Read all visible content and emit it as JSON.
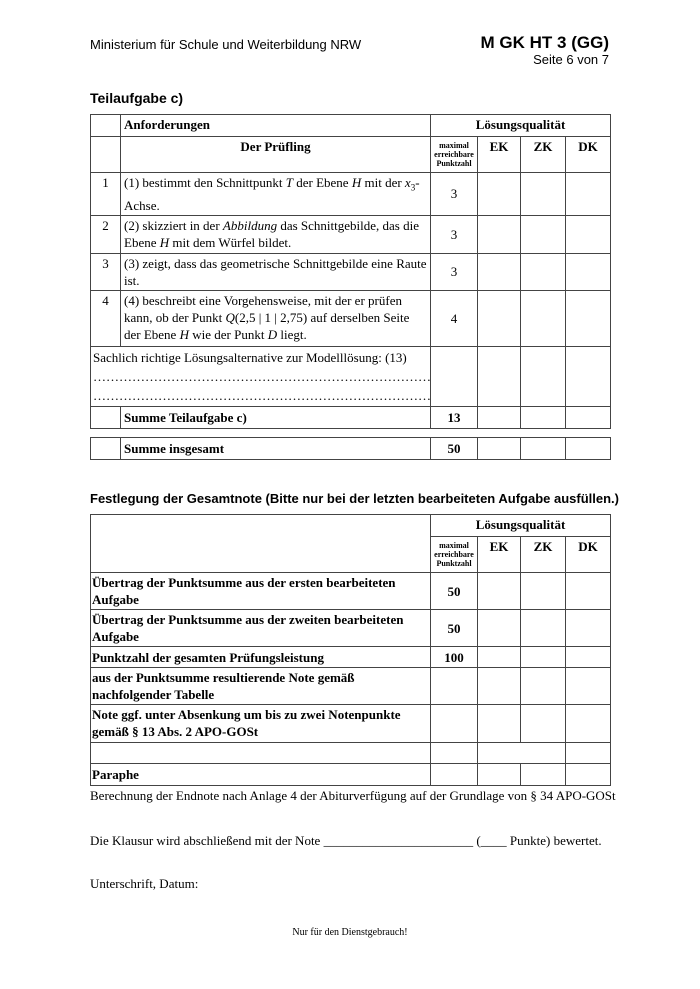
{
  "header": {
    "ministry": "Ministerium für Schule und Weiterbildung NRW",
    "code": "M GK HT 3 (GG)",
    "page": "Seite 6 von 7"
  },
  "section_title": "Teilaufgabe c)",
  "table1": {
    "h_anf": "Anforderungen",
    "h_lq": "Lösungsqualität",
    "h_pruef": "Der Prüfling",
    "h_max": "maximal erreichbare Punktzahl",
    "h_ek": "EK",
    "h_zk": "ZK",
    "h_dk": "DK",
    "rows": [
      {
        "n": "1",
        "pts": "3"
      },
      {
        "n": "2",
        "pts": "3"
      },
      {
        "n": "3",
        "pts": "3"
      },
      {
        "n": "4",
        "pts": "4"
      }
    ],
    "r1a": "(1) bestimmt den Schnittpunkt ",
    "r1T": "T",
    "r1b": " der Ebene ",
    "r1H": "H",
    "r1c": " mit der ",
    "r1x": "x",
    "r1sub": "3",
    "r1d": "-Achse.",
    "r2a": "(2) skizziert in der ",
    "r2i": "Abbildung",
    "r2b": " das Schnittgebilde, das die Ebene ",
    "r2H": "H",
    "r2c": " mit dem Würfel bildet.",
    "r3": "(3) zeigt, dass das geometrische Schnittgebilde eine Raute ist.",
    "r4a": "(4) beschreibt eine Vorgehensweise, mit der er prüfen kann, ob der Punkt ",
    "r4Q": "Q",
    "r4b": "(2,5 | 1 | 2,75)",
    "r4c": " auf derselben Seite der Ebene ",
    "r4H": "H",
    "r4d": " wie der Punkt ",
    "r4D": "D",
    "r4e": " liegt.",
    "alt": "Sachlich richtige Lösungsalternative zur Modelllösung: (13)",
    "dots": "……………………………………………………………………",
    "sum_label": "Summe Teilaufgabe c)",
    "sum_pts": "13"
  },
  "total": {
    "label": "Summe insgesamt",
    "pts": "50"
  },
  "grade_title": "Festlegung der Gesamtnote (Bitte nur bei der letzten bearbeiteten Aufgabe ausfüllen.)",
  "table2": {
    "rows": [
      {
        "label": "Übertrag der Punktsumme aus der ersten bearbeiteten Aufgabe",
        "pts": "50"
      },
      {
        "label": "Übertrag der Punktsumme aus der zweiten bearbeiteten Aufgabe",
        "pts": "50"
      },
      {
        "label": "Punktzahl der gesamten Prüfungsleistung",
        "pts": "100"
      },
      {
        "label": "aus der Punktsumme resultierende Note gemäß nachfolgender Tabelle",
        "pts": ""
      },
      {
        "label": "Note ggf. unter Absenkung um bis zu zwei Notenpunkte gemäß § 13 Abs. 2 APO-GOSt",
        "pts": ""
      }
    ],
    "paraphe": "Paraphe"
  },
  "text1": "Berechnung der Endnote nach Anlage 4 der Abiturverfügung auf der Grundlage von § 34 APO-GOSt",
  "text2": "Die Klausur wird abschließend mit der Note _______________________ (____ Punkte) bewertet.",
  "text3": "Unterschrift, Datum:",
  "footer": "Nur für den Dienstgebrauch!"
}
